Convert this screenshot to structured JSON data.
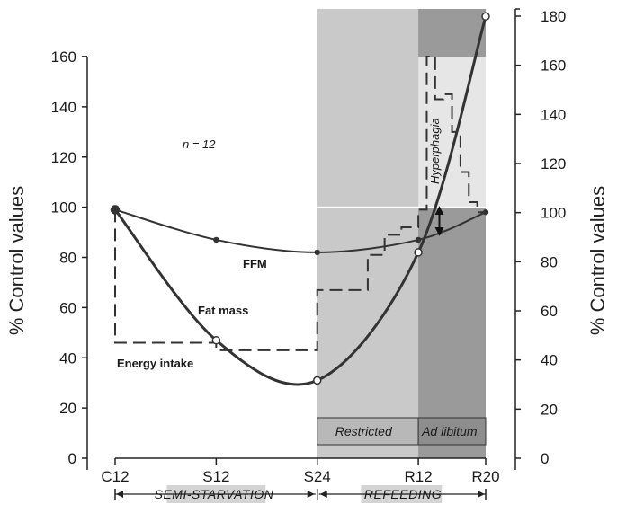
{
  "chart_data": {
    "type": "line",
    "x": [
      "C12",
      "S12",
      "S24",
      "R12",
      "R20"
    ],
    "left_axis": {
      "title": "% Control values",
      "ylim": [
        0,
        160
      ],
      "ticks": [
        0,
        20,
        40,
        60,
        80,
        100,
        120,
        140,
        160
      ]
    },
    "right_axis": {
      "title": "% Control values",
      "ylim": [
        0,
        180
      ],
      "ticks": [
        0,
        20,
        40,
        60,
        80,
        100,
        120,
        140,
        160,
        180
      ]
    },
    "series": [
      {
        "name": "FFM",
        "x": [
          0,
          12,
          24,
          36,
          44
        ],
        "values": [
          99,
          87,
          82,
          87,
          98
        ]
      },
      {
        "name": "Fat mass",
        "x": [
          0,
          12,
          24,
          36,
          44
        ],
        "values": [
          99,
          47,
          31,
          82,
          176
        ]
      },
      {
        "name": "Energy intake",
        "style": "dashed-step",
        "steps": [
          [
            0,
            99
          ],
          [
            0,
            46
          ],
          [
            12,
            46
          ],
          [
            12,
            43
          ],
          [
            24,
            43
          ],
          [
            24,
            67
          ],
          [
            30,
            67
          ],
          [
            30,
            81
          ],
          [
            32,
            81
          ],
          [
            32,
            89
          ],
          [
            34,
            89
          ],
          [
            34,
            92
          ],
          [
            36,
            92
          ],
          [
            36,
            99
          ],
          [
            37,
            99
          ],
          [
            37,
            160
          ],
          [
            38,
            160
          ],
          [
            38,
            143
          ],
          [
            39,
            143
          ],
          [
            39,
            145
          ],
          [
            40,
            145
          ],
          [
            40,
            130
          ],
          [
            41,
            130
          ],
          [
            41,
            114
          ],
          [
            42,
            114
          ],
          [
            42,
            102
          ],
          [
            43,
            102
          ],
          [
            43,
            98
          ],
          [
            44,
            98
          ]
        ]
      }
    ],
    "annotations": {
      "n": "n = 12",
      "hyperphagia": "Hyperphagia",
      "restricted": "Restricted",
      "ad_libitum": "Ad libitum",
      "semi_starvation": "SEMI-STARVATION",
      "refeeding": "REFEEDING"
    }
  }
}
